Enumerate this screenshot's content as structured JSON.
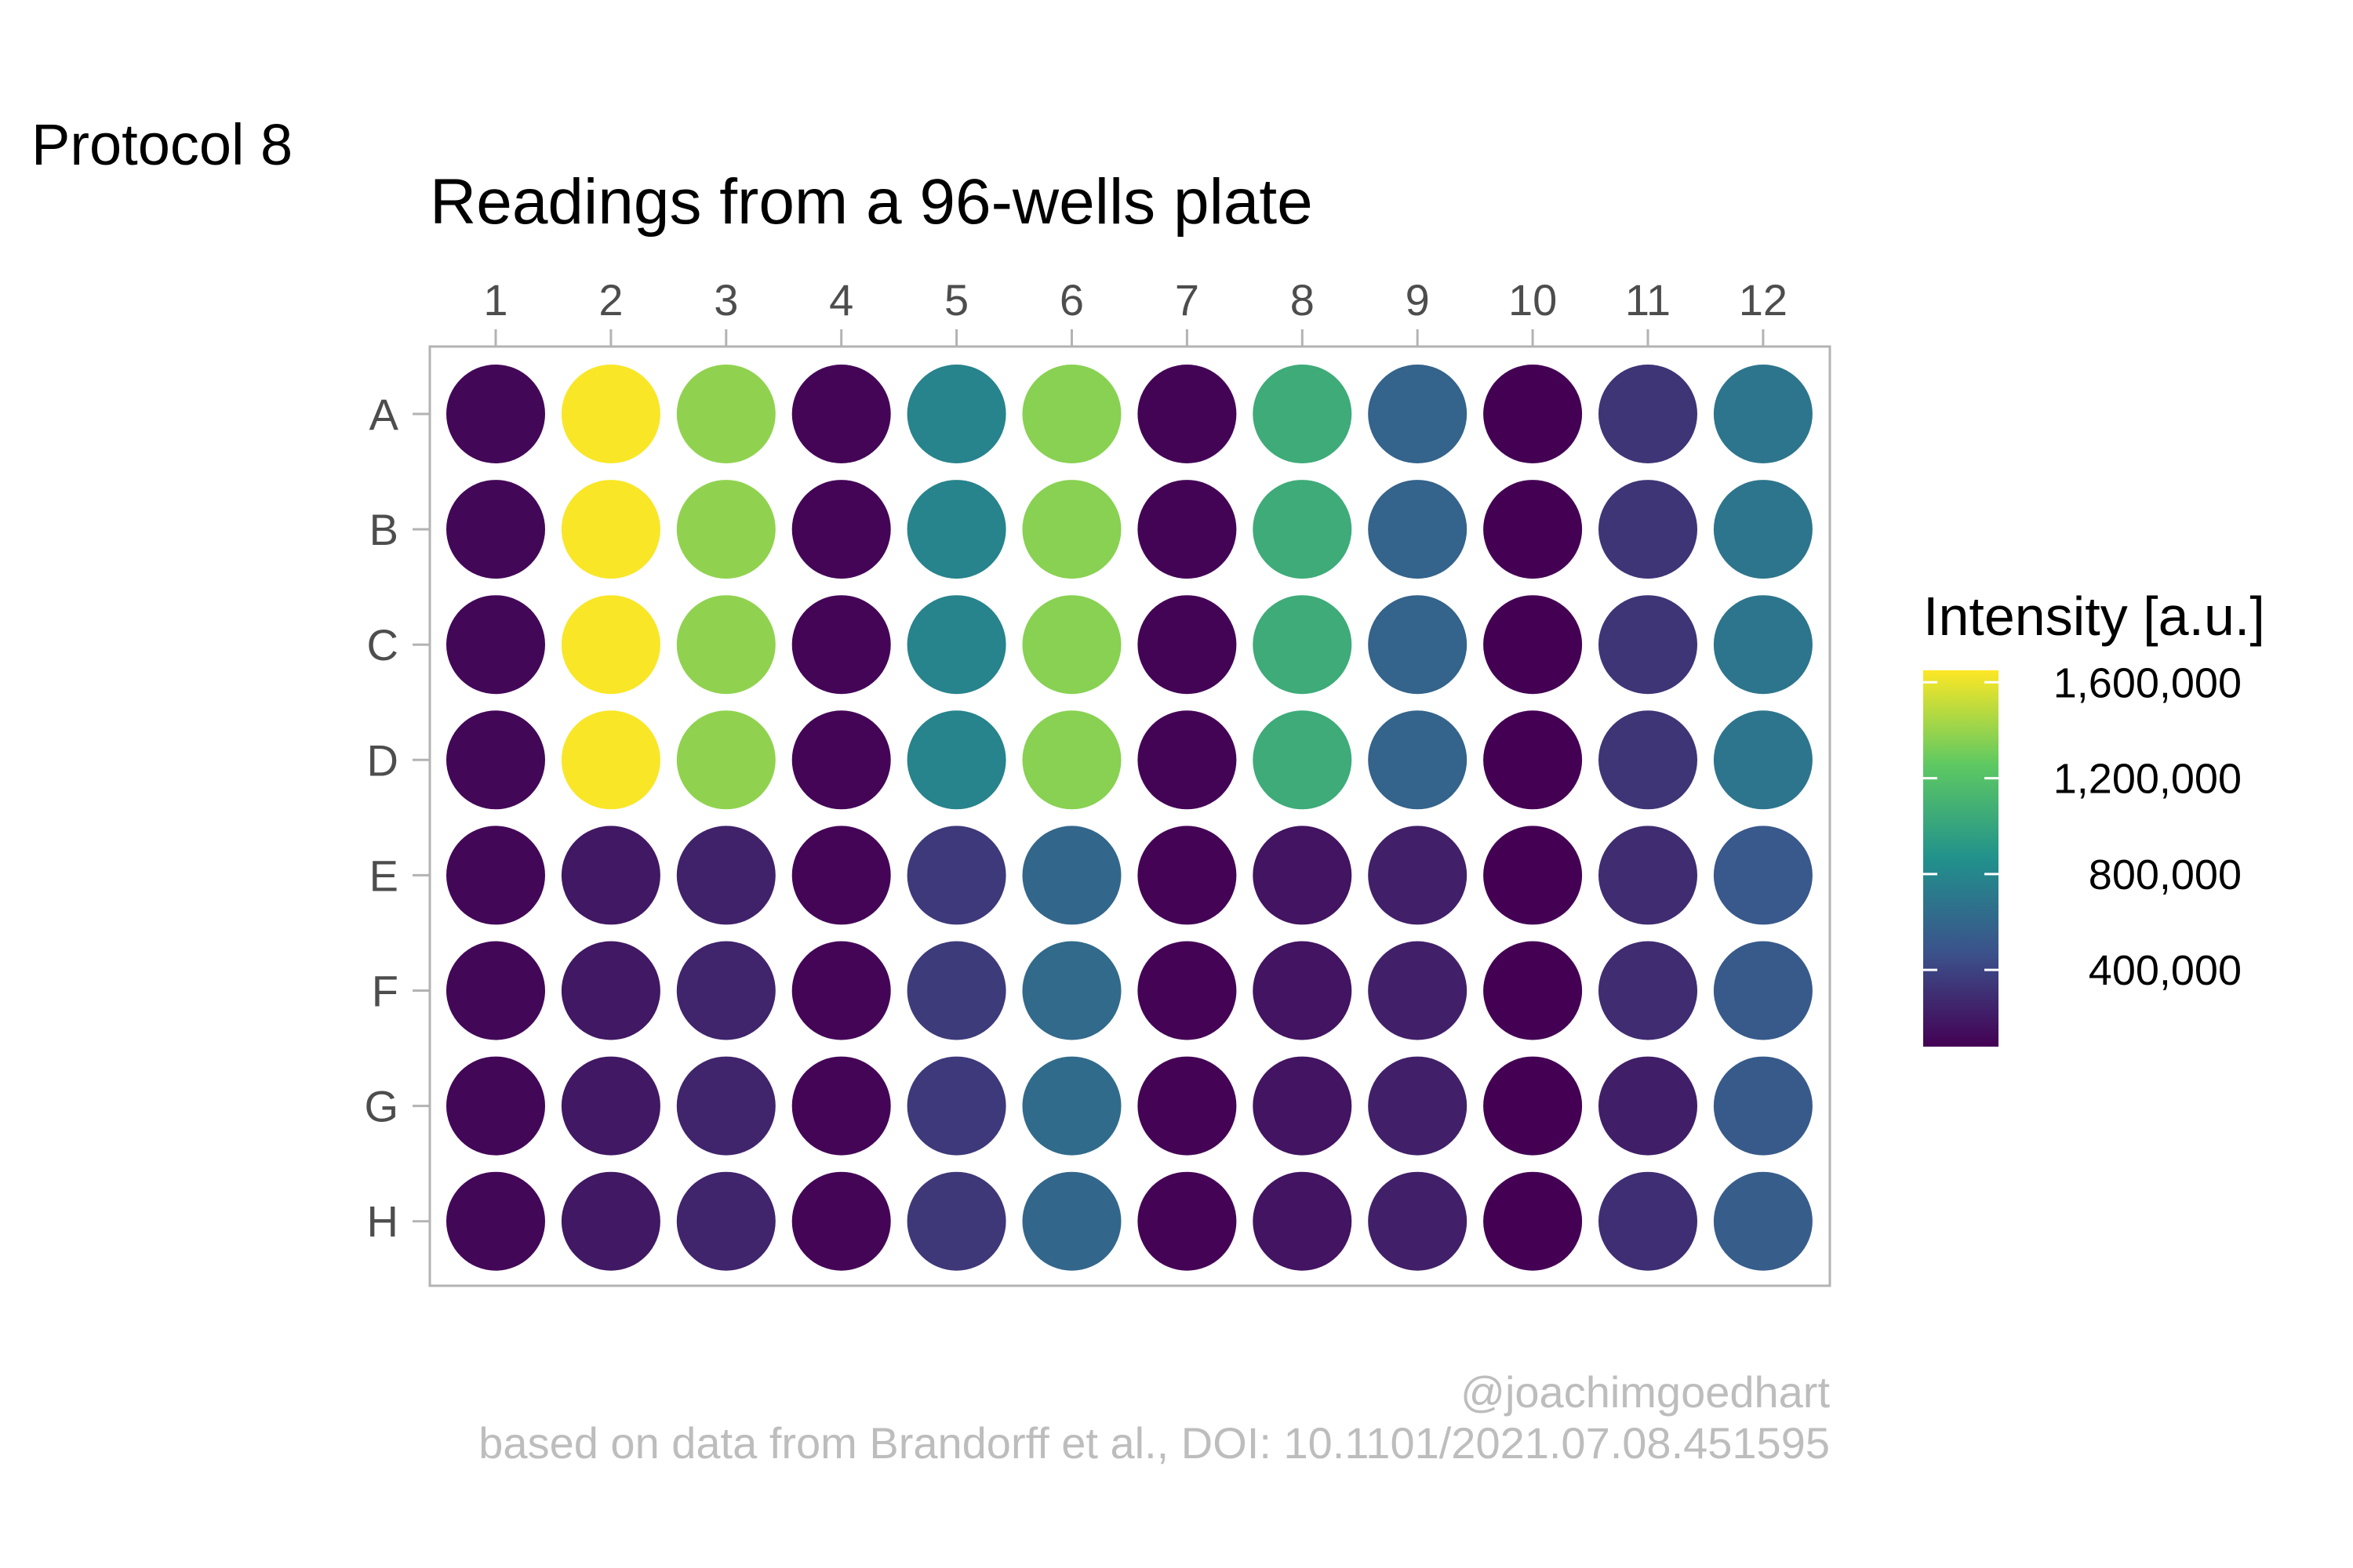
{
  "tag": "Protocol 8",
  "caption": {
    "line1": "@joachimgoedhart",
    "line2": "based on data from Brandorff et al., DOI: 10.1101/2021.07.08.451595"
  },
  "chart_data": {
    "type": "heatmap",
    "title": "Readings from a 96-wells plate",
    "columns": [
      "1",
      "2",
      "3",
      "4",
      "5",
      "6",
      "7",
      "8",
      "9",
      "10",
      "11",
      "12"
    ],
    "rows": [
      "A",
      "B",
      "C",
      "D",
      "E",
      "F",
      "G",
      "H"
    ],
    "colorscale": "viridis",
    "value_range": [
      80000,
      1650000
    ],
    "legend": {
      "title": "Intensity [a.u.]",
      "ticks": [
        400000,
        800000,
        1200000,
        1600000
      ],
      "tick_labels": [
        "400,000",
        "800,000",
        "1,200,000",
        "1,600,000"
      ],
      "placement": "right"
    },
    "values": [
      [
        110000,
        1640000,
        1380000,
        100000,
        780000,
        1360000,
        95000,
        1050000,
        580000,
        80000,
        330000,
        690000
      ],
      [
        110000,
        1640000,
        1380000,
        100000,
        780000,
        1360000,
        95000,
        1050000,
        580000,
        80000,
        330000,
        690000
      ],
      [
        110000,
        1640000,
        1380000,
        100000,
        780000,
        1360000,
        95000,
        1050000,
        580000,
        80000,
        330000,
        690000
      ],
      [
        110000,
        1640000,
        1380000,
        100000,
        780000,
        1360000,
        95000,
        1050000,
        580000,
        80000,
        330000,
        690000
      ],
      [
        110000,
        190000,
        240000,
        100000,
        350000,
        600000,
        90000,
        170000,
        230000,
        80000,
        290000,
        510000
      ],
      [
        110000,
        190000,
        250000,
        100000,
        360000,
        620000,
        90000,
        170000,
        230000,
        80000,
        290000,
        520000
      ],
      [
        110000,
        190000,
        250000,
        100000,
        350000,
        630000,
        90000,
        170000,
        230000,
        80000,
        220000,
        520000
      ],
      [
        110000,
        190000,
        250000,
        100000,
        340000,
        600000,
        90000,
        170000,
        230000,
        80000,
        300000,
        540000
      ]
    ]
  }
}
